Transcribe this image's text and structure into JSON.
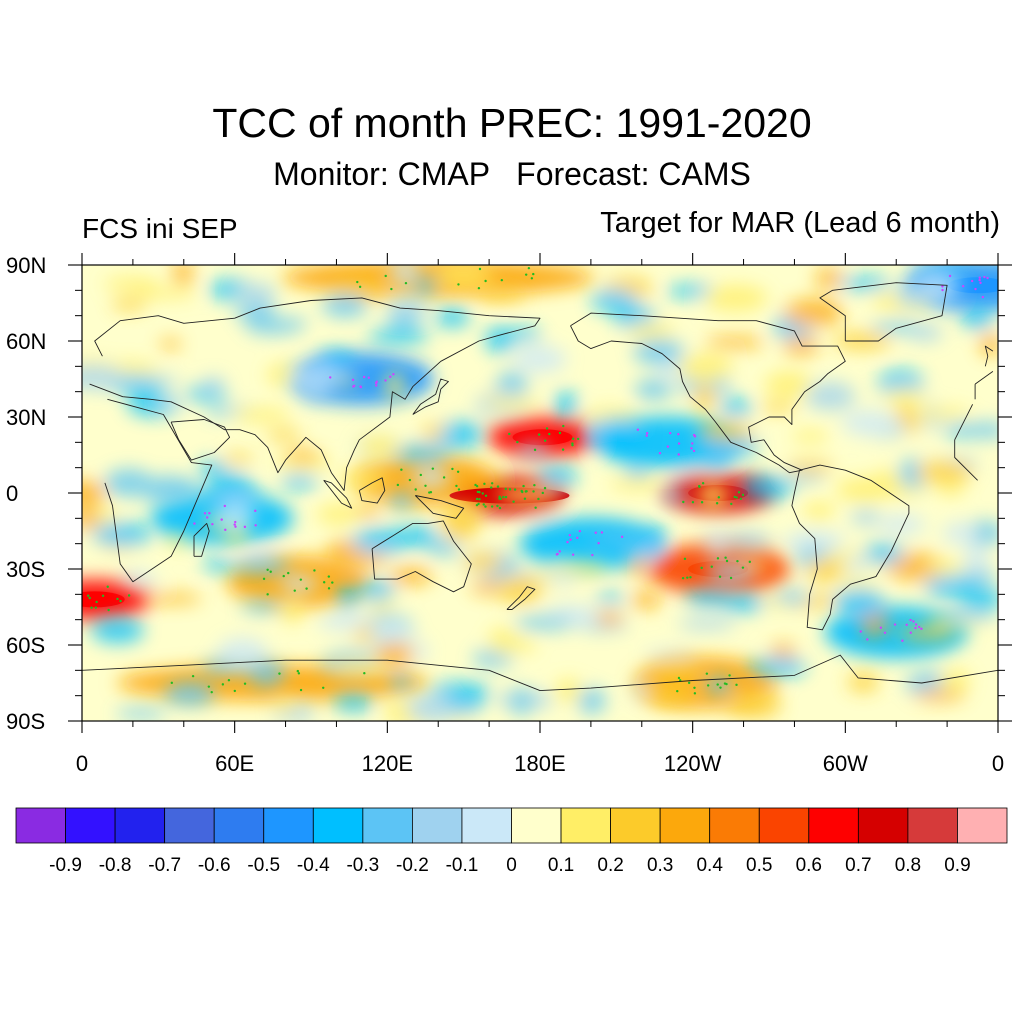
{
  "header": {
    "title": "TCC of month PREC: 1991-2020",
    "subtitle": "Monitor: CMAP   Forecast: CAMS",
    "left_label": "FCS ini SEP",
    "right_label": "Target for MAR (Lead 6 month)"
  },
  "map": {
    "projection": "cylindrical equidistant",
    "central_longitude": 180,
    "lat_range": [
      -90,
      90
    ],
    "lon_range": [
      0,
      360
    ],
    "lat_ticks": [
      {
        "value": 90,
        "label": "90N"
      },
      {
        "value": 60,
        "label": "60N"
      },
      {
        "value": 30,
        "label": "30N"
      },
      {
        "value": 0,
        "label": "0"
      },
      {
        "value": -30,
        "label": "30S"
      },
      {
        "value": -60,
        "label": "60S"
      },
      {
        "value": -90,
        "label": "90S"
      }
    ],
    "lon_ticks": [
      {
        "value": 0,
        "label": "0"
      },
      {
        "value": 60,
        "label": "60E"
      },
      {
        "value": 120,
        "label": "120E"
      },
      {
        "value": 180,
        "label": "180E"
      },
      {
        "value": 240,
        "label": "120W"
      },
      {
        "value": 300,
        "label": "60W"
      },
      {
        "value": 360,
        "label": "0"
      }
    ],
    "significance_marker_colors": {
      "positive": "#22bb22",
      "negative": "#cc44ff"
    },
    "features": [
      {
        "name": "equatorial-pacific-max",
        "lon": 168,
        "lat": -1,
        "value": 0.75
      },
      {
        "name": "eastern-pacific-max",
        "lon": 250,
        "lat": 0,
        "value": 0.7
      },
      {
        "name": "maritime-continent",
        "lon": 135,
        "lat": 5,
        "value": 0.4
      },
      {
        "name": "north-pacific-max",
        "lon": 181,
        "lat": 22,
        "value": 0.6
      },
      {
        "name": "south-atlantic-max",
        "lon": 5,
        "lat": -42,
        "value": 0.6
      },
      {
        "name": "southeast-pacific-max",
        "lon": 250,
        "lat": -30,
        "value": 0.5
      },
      {
        "name": "south-indian-max",
        "lon": 85,
        "lat": -35,
        "value": 0.4
      },
      {
        "name": "antarctic-band",
        "lon": 75,
        "lat": -75,
        "value": 0.3
      },
      {
        "name": "antarctic-pacific",
        "lon": 245,
        "lat": -75,
        "value": 0.4
      },
      {
        "name": "arctic-band",
        "lon": 140,
        "lat": 85,
        "value": 0.3
      },
      {
        "name": "pacific-subtropical-min",
        "lon": 200,
        "lat": -20,
        "value": -0.3
      },
      {
        "name": "siberia-min",
        "lon": 110,
        "lat": 45,
        "value": -0.4
      },
      {
        "name": "north-atlantic-arctic-min",
        "lon": 352,
        "lat": 82,
        "value": -0.5
      },
      {
        "name": "east-pacific-north-min",
        "lon": 230,
        "lat": 20,
        "value": -0.3
      },
      {
        "name": "indian-ocean-min",
        "lon": 55,
        "lat": -10,
        "value": -0.3
      },
      {
        "name": "southern-ocean-min",
        "lon": 320,
        "lat": -55,
        "value": -0.3
      }
    ]
  },
  "colorbar": {
    "colors": [
      "#8a2be2",
      "#3311ff",
      "#2222ee",
      "#4466dd",
      "#2e7cf0",
      "#1e96ff",
      "#00bfff",
      "#5cc4f5",
      "#9fd2ef",
      "#cbe8f8",
      "#ffffcc",
      "#ffee66",
      "#fccb2a",
      "#fca80c",
      "#fa7b05",
      "#fa4400",
      "#fe0000",
      "#d50000",
      "#d63a3a",
      "#ffb0b2"
    ],
    "labels": [
      "-0.9",
      "-0.8",
      "-0.7",
      "-0.6",
      "-0.5",
      "-0.4",
      "-0.3",
      "-0.2",
      "-0.1",
      "0",
      "0.1",
      "0.2",
      "0.3",
      "0.4",
      "0.5",
      "0.6",
      "0.7",
      "0.8",
      "0.9"
    ]
  }
}
